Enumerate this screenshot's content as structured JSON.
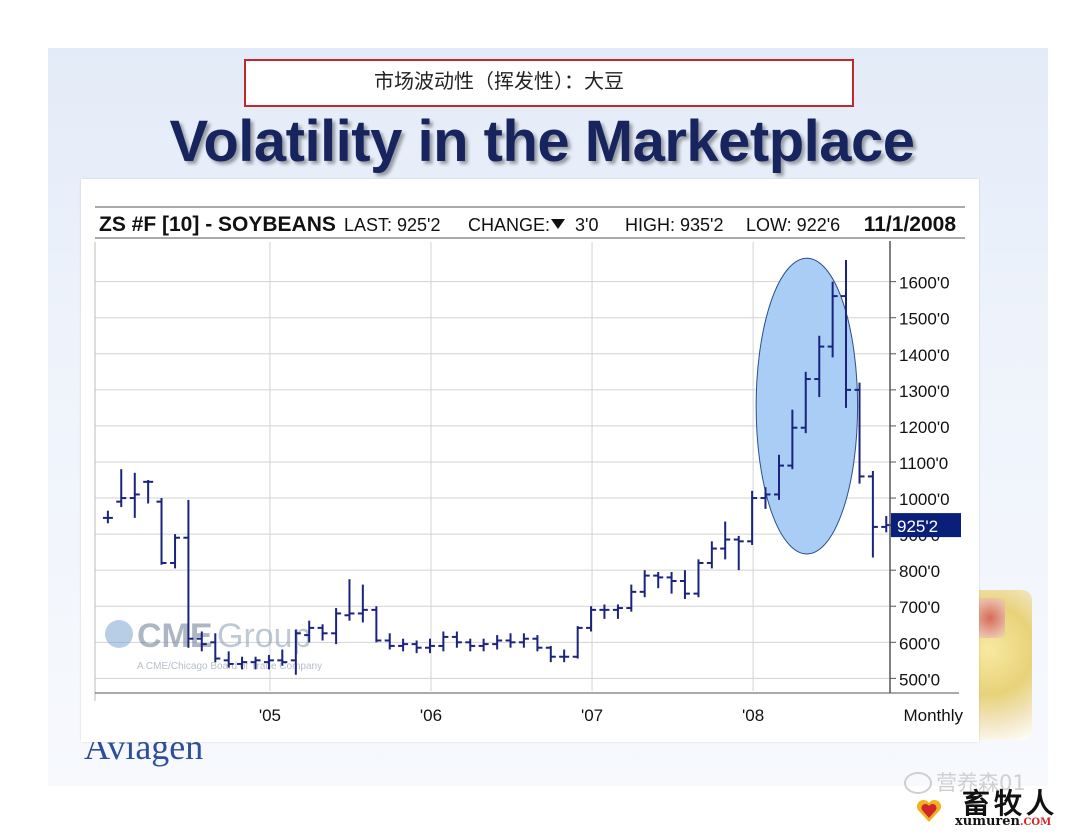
{
  "slide": {
    "chinese_title": "市场波动性（挥发性）：大豆",
    "title": "Volatility in the Marketplace",
    "logo_text": "Aviagen"
  },
  "chart_header": {
    "symbol": "ZS #F [10] - SOYBEANS",
    "last": "LAST: 925'2",
    "change_label": "CHANGE:",
    "change_value": "3'0",
    "high": "HIGH: 935'2",
    "low": "LOW: 922'6",
    "date": "11/1/2008"
  },
  "chart_watermark": {
    "brand_a": "CME",
    "brand_b": "Group",
    "subtext": "A CME/Chicago Board of Trade Company"
  },
  "watermark": {
    "account": "营养森01",
    "brand_cn": "畜牧人",
    "brand_url": "xumuren",
    "brand_url_suffix": ".COM"
  },
  "colors": {
    "title": "#17245e",
    "bars": "#1a237e",
    "highlight_ellipse": "#a9cdf5",
    "last_price_box": "#0a1f7a",
    "red_border": "#c0282c"
  },
  "chart_data": {
    "type": "ohlc",
    "frequency": "Monthly",
    "last_price_label": "925'2",
    "y_tick_labels": [
      "500'0",
      "600'0",
      "700'0",
      "800'0",
      "900'0",
      "1000'0",
      "1100'0",
      "1200'0",
      "1300'0",
      "1400'0",
      "1500'0",
      "1600'0"
    ],
    "y_ticks": [
      500,
      600,
      700,
      800,
      900,
      1000,
      1100,
      1200,
      1300,
      1400,
      1500,
      1600
    ],
    "ylim": [
      465,
      1710
    ],
    "x_tick_labels": [
      "'05",
      "'06",
      "'07",
      "'08",
      "Monthly"
    ],
    "x_ticks": [
      2005.0,
      2006.0,
      2007.0,
      2008.0
    ],
    "xlim": [
      2003.92,
      2008.85
    ],
    "highlight": {
      "shape": "ellipse",
      "x_center": 2008.34,
      "y_center": 1255,
      "x_radius": 0.315,
      "y_radius": 410
    },
    "bars": [
      {
        "x": 2004.0,
        "o": 945,
        "h": 965,
        "l": 930,
        "c": 945
      },
      {
        "x": 2004.083,
        "o": 990,
        "h": 1080,
        "l": 975,
        "c": 1000
      },
      {
        "x": 2004.167,
        "o": 1000,
        "h": 1070,
        "l": 945,
        "c": 1010
      },
      {
        "x": 2004.25,
        "o": 1045,
        "h": 1050,
        "l": 985,
        "c": 1045
      },
      {
        "x": 2004.333,
        "o": 990,
        "h": 1000,
        "l": 815,
        "c": 820
      },
      {
        "x": 2004.417,
        "o": 820,
        "h": 900,
        "l": 805,
        "c": 890
      },
      {
        "x": 2004.5,
        "o": 890,
        "h": 995,
        "l": 585,
        "c": 610
      },
      {
        "x": 2004.583,
        "o": 610,
        "h": 630,
        "l": 575,
        "c": 595
      },
      {
        "x": 2004.667,
        "o": 600,
        "h": 625,
        "l": 545,
        "c": 555
      },
      {
        "x": 2004.75,
        "o": 550,
        "h": 575,
        "l": 530,
        "c": 540
      },
      {
        "x": 2004.833,
        "o": 540,
        "h": 560,
        "l": 525,
        "c": 545
      },
      {
        "x": 2004.917,
        "o": 545,
        "h": 560,
        "l": 525,
        "c": 550
      },
      {
        "x": 2005.0,
        "o": 545,
        "h": 565,
        "l": 525,
        "c": 550
      },
      {
        "x": 2005.083,
        "o": 550,
        "h": 580,
        "l": 535,
        "c": 545
      },
      {
        "x": 2005.167,
        "o": 550,
        "h": 635,
        "l": 510,
        "c": 625
      },
      {
        "x": 2005.25,
        "o": 620,
        "h": 660,
        "l": 600,
        "c": 640
      },
      {
        "x": 2005.333,
        "o": 640,
        "h": 650,
        "l": 605,
        "c": 625
      },
      {
        "x": 2005.417,
        "o": 625,
        "h": 695,
        "l": 595,
        "c": 680
      },
      {
        "x": 2005.5,
        "o": 675,
        "h": 775,
        "l": 660,
        "c": 680
      },
      {
        "x": 2005.583,
        "o": 680,
        "h": 760,
        "l": 655,
        "c": 690
      },
      {
        "x": 2005.667,
        "o": 690,
        "h": 700,
        "l": 600,
        "c": 605
      },
      {
        "x": 2005.75,
        "o": 605,
        "h": 625,
        "l": 580,
        "c": 590
      },
      {
        "x": 2005.833,
        "o": 590,
        "h": 610,
        "l": 575,
        "c": 595
      },
      {
        "x": 2005.917,
        "o": 595,
        "h": 605,
        "l": 570,
        "c": 585
      },
      {
        "x": 2006.0,
        "o": 585,
        "h": 610,
        "l": 570,
        "c": 590
      },
      {
        "x": 2006.083,
        "o": 590,
        "h": 630,
        "l": 575,
        "c": 615
      },
      {
        "x": 2006.167,
        "o": 615,
        "h": 630,
        "l": 585,
        "c": 600
      },
      {
        "x": 2006.25,
        "o": 600,
        "h": 610,
        "l": 575,
        "c": 590
      },
      {
        "x": 2006.333,
        "o": 590,
        "h": 610,
        "l": 575,
        "c": 595
      },
      {
        "x": 2006.417,
        "o": 595,
        "h": 620,
        "l": 580,
        "c": 605
      },
      {
        "x": 2006.5,
        "o": 605,
        "h": 625,
        "l": 585,
        "c": 600
      },
      {
        "x": 2006.583,
        "o": 600,
        "h": 625,
        "l": 585,
        "c": 610
      },
      {
        "x": 2006.667,
        "o": 610,
        "h": 620,
        "l": 575,
        "c": 585
      },
      {
        "x": 2006.75,
        "o": 585,
        "h": 590,
        "l": 545,
        "c": 560
      },
      {
        "x": 2006.833,
        "o": 560,
        "h": 580,
        "l": 545,
        "c": 560
      },
      {
        "x": 2006.917,
        "o": 560,
        "h": 645,
        "l": 555,
        "c": 640
      },
      {
        "x": 2007.0,
        "o": 640,
        "h": 700,
        "l": 630,
        "c": 690
      },
      {
        "x": 2007.083,
        "o": 690,
        "h": 705,
        "l": 665,
        "c": 690
      },
      {
        "x": 2007.167,
        "o": 690,
        "h": 705,
        "l": 665,
        "c": 695
      },
      {
        "x": 2007.25,
        "o": 695,
        "h": 760,
        "l": 685,
        "c": 740
      },
      {
        "x": 2007.333,
        "o": 740,
        "h": 800,
        "l": 725,
        "c": 785
      },
      {
        "x": 2007.417,
        "o": 785,
        "h": 795,
        "l": 750,
        "c": 780
      },
      {
        "x": 2007.5,
        "o": 780,
        "h": 795,
        "l": 735,
        "c": 770
      },
      {
        "x": 2007.583,
        "o": 770,
        "h": 800,
        "l": 720,
        "c": 735
      },
      {
        "x": 2007.667,
        "o": 735,
        "h": 830,
        "l": 725,
        "c": 820
      },
      {
        "x": 2007.75,
        "o": 820,
        "h": 880,
        "l": 805,
        "c": 860
      },
      {
        "x": 2007.833,
        "o": 860,
        "h": 935,
        "l": 830,
        "c": 885
      },
      {
        "x": 2007.917,
        "o": 885,
        "h": 895,
        "l": 800,
        "c": 880
      },
      {
        "x": 2008.0,
        "o": 880,
        "h": 1020,
        "l": 870,
        "c": 1000
      },
      {
        "x": 2008.083,
        "o": 1000,
        "h": 1030,
        "l": 970,
        "c": 1010
      },
      {
        "x": 2008.167,
        "o": 1010,
        "h": 1120,
        "l": 995,
        "c": 1090
      },
      {
        "x": 2008.25,
        "o": 1090,
        "h": 1245,
        "l": 1080,
        "c": 1195
      },
      {
        "x": 2008.333,
        "o": 1195,
        "h": 1350,
        "l": 1180,
        "c": 1330
      },
      {
        "x": 2008.417,
        "o": 1330,
        "h": 1450,
        "l": 1280,
        "c": 1420
      },
      {
        "x": 2008.5,
        "o": 1420,
        "h": 1600,
        "l": 1390,
        "c": 1560
      },
      {
        "x": 2008.583,
        "o": 1560,
        "h": 1660,
        "l": 1250,
        "c": 1300
      },
      {
        "x": 2008.667,
        "o": 1300,
        "h": 1320,
        "l": 1040,
        "c": 1060
      },
      {
        "x": 2008.75,
        "o": 1060,
        "h": 1075,
        "l": 835,
        "c": 920
      },
      {
        "x": 2008.833,
        "o": 920,
        "h": 950,
        "l": 905,
        "c": 925
      }
    ]
  }
}
